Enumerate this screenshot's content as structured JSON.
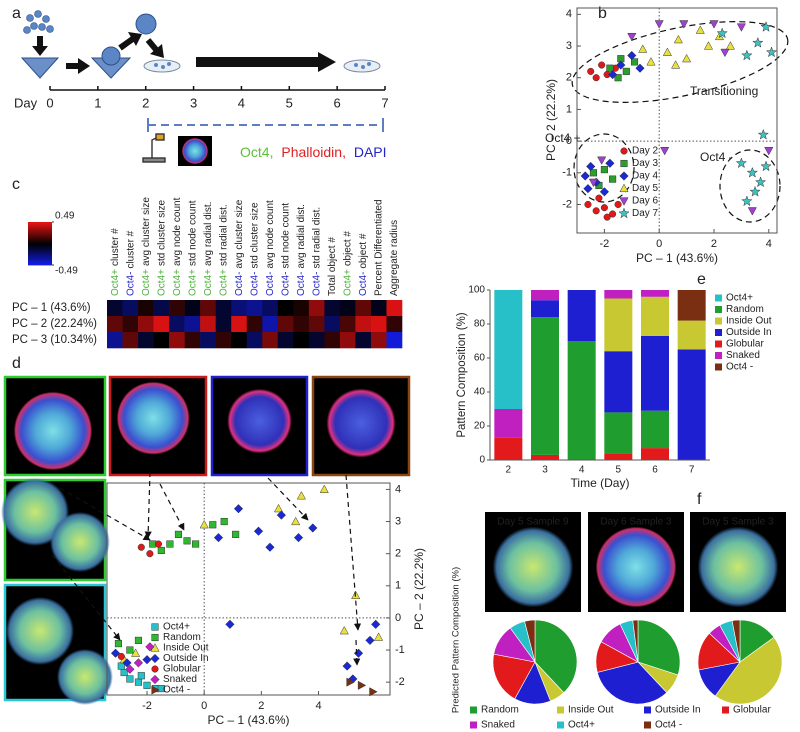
{
  "panel_labels": [
    "a",
    "b",
    "c",
    "d",
    "e",
    "f"
  ],
  "timeline": {
    "axis_label": "Day",
    "ticks": [
      0,
      1,
      2,
      3,
      4,
      5,
      6,
      7
    ],
    "xlim": [
      0,
      7
    ],
    "stain": [
      {
        "text": "Oct4,",
        "color": "#5cbf3a"
      },
      {
        "text": "Phalloidin,",
        "color": "#e02020"
      },
      {
        "text": "DAPI",
        "color": "#2424c8"
      }
    ]
  },
  "chart_data": [
    {
      "type": "scatter",
      "xlabel": "PC – 1 (43.6%)",
      "ylabel": "PC – 2 (22.2%)",
      "xlim": [
        -3,
        4.3
      ],
      "ylim": [
        -2.9,
        4.2
      ],
      "xticks": [
        -2,
        0,
        2,
        4
      ],
      "yticks": [
        -2,
        -1,
        0,
        1,
        2,
        3,
        4
      ],
      "zero_lines": true,
      "annotations": [
        "Transitioning",
        "Oct4 +",
        "Oct4 -"
      ],
      "series": [
        {
          "name": "Day 2",
          "color": "#e01818",
          "marker": "circle",
          "x": [
            -2.5,
            -2.3,
            -2.1,
            -1.9,
            -1.6,
            -2.6,
            -2.3,
            -2.0,
            -1.7,
            -1.5,
            -2.2,
            -1.9
          ],
          "y": [
            2.2,
            2.0,
            2.4,
            2.1,
            2.3,
            -2.0,
            -2.2,
            -2.1,
            -2.3,
            -2.0,
            -1.8,
            -2.4
          ]
        },
        {
          "name": "Day 3",
          "color": "#2aa02a",
          "marker": "square",
          "x": [
            -2.4,
            -2.0,
            -1.7,
            -2.2,
            -1.8,
            -1.5,
            -1.2,
            -0.9,
            -1.4
          ],
          "y": [
            -1.0,
            -0.9,
            -1.2,
            -1.4,
            2.3,
            2.0,
            2.2,
            2.5,
            2.6
          ]
        },
        {
          "name": "Day 4",
          "color": "#1a2ad0",
          "marker": "diamond",
          "x": [
            -2.7,
            -2.5,
            -2.3,
            -2.0,
            -1.8,
            -2.6,
            -1.4,
            -1.0,
            -0.7,
            -1.7
          ],
          "y": [
            -1.1,
            -0.8,
            -1.3,
            -1.6,
            -0.7,
            -1.5,
            2.4,
            2.7,
            2.3,
            2.1
          ]
        },
        {
          "name": "Day 5",
          "color": "#e8e040",
          "marker": "triangle",
          "x": [
            -0.3,
            0.3,
            0.7,
            1.0,
            1.5,
            1.8,
            2.2,
            2.6,
            0.6,
            -0.6
          ],
          "y": [
            2.5,
            2.8,
            3.2,
            2.6,
            3.5,
            3.0,
            3.3,
            3.0,
            2.4,
            2.9
          ]
        },
        {
          "name": "Day 6",
          "color": "#a040d0",
          "marker": "triangle-down",
          "x": [
            -1.0,
            0.0,
            0.9,
            2.0,
            3.0,
            2.4,
            -2.4,
            -2.1,
            0.2,
            4.0,
            3.4
          ],
          "y": [
            3.3,
            3.7,
            3.7,
            3.7,
            3.6,
            2.8,
            -1.3,
            -0.6,
            -0.3,
            -0.3,
            -2.2
          ]
        },
        {
          "name": "Day 7",
          "color": "#40c0c0",
          "marker": "star",
          "x": [
            2.3,
            3.2,
            3.6,
            3.9,
            4.1,
            3.0,
            3.4,
            3.7,
            3.9,
            3.5,
            3.8,
            3.2
          ],
          "y": [
            3.4,
            2.7,
            3.1,
            3.6,
            2.8,
            -0.7,
            -1.0,
            -1.3,
            -0.8,
            -1.6,
            0.2,
            -1.9
          ]
        }
      ]
    },
    {
      "type": "heatmap",
      "columns": [
        {
          "prefix": "Oct4+",
          "prefix_color": "#4caf3a",
          "text": "cluster #"
        },
        {
          "prefix": "Oct4-",
          "prefix_color": "#2424c8",
          "text": "cluster #"
        },
        {
          "prefix": "Oct4+",
          "prefix_color": "#4caf3a",
          "text": "avg cluster size"
        },
        {
          "prefix": "Oct4+",
          "prefix_color": "#4caf3a",
          "text": "std cluster size"
        },
        {
          "prefix": "Oct4+",
          "prefix_color": "#4caf3a",
          "text": "avg node count"
        },
        {
          "prefix": "Oct4+",
          "prefix_color": "#4caf3a",
          "text": "std node count"
        },
        {
          "prefix": "Oct4+",
          "prefix_color": "#4caf3a",
          "text": "avg radial dist."
        },
        {
          "prefix": "Oct4+",
          "prefix_color": "#4caf3a",
          "text": "std radial dist."
        },
        {
          "prefix": "Oct4-",
          "prefix_color": "#2424c8",
          "text": "avg cluster size"
        },
        {
          "prefix": "Oct4-",
          "prefix_color": "#2424c8",
          "text": "std cluster size"
        },
        {
          "prefix": "Oct4-",
          "prefix_color": "#2424c8",
          "text": "avg node count"
        },
        {
          "prefix": "Oct4-",
          "prefix_color": "#2424c8",
          "text": "std node count"
        },
        {
          "prefix": "Oct4-",
          "prefix_color": "#2424c8",
          "text": "avg radial dist."
        },
        {
          "prefix": "Oct4-",
          "prefix_color": "#2424c8",
          "text": "std radial dist."
        },
        {
          "text": "Total object #"
        },
        {
          "prefix": "Oct4+",
          "prefix_color": "#4caf3a",
          "text": "object #"
        },
        {
          "prefix": "Oct4-",
          "prefix_color": "#2424c8",
          "text": "object #"
        },
        {
          "text": "Percent Differentiated"
        },
        {
          "text": "Aggregate radius"
        }
      ],
      "rows": [
        "PC – 1 (43.6%)",
        "PC – 2 (22.24%)",
        "PC – 3 (10.34%)"
      ],
      "values": [
        [
          -0.1,
          -0.2,
          0.05,
          -0.15,
          0.1,
          -0.05,
          0.2,
          -0.1,
          -0.25,
          -0.3,
          -0.2,
          0.0,
          0.05,
          0.3,
          -0.1,
          -0.05,
          0.2,
          -0.05,
          0.45
        ],
        [
          0.2,
          0.1,
          0.3,
          0.45,
          -0.2,
          -0.3,
          0.4,
          -0.1,
          0.45,
          0.1,
          -0.35,
          0.2,
          0.1,
          0.2,
          -0.2,
          0.15,
          0.4,
          0.45,
          0.1
        ],
        [
          -0.3,
          0.2,
          -0.1,
          0.0,
          0.3,
          0.1,
          -0.2,
          0.1,
          0.0,
          -0.2,
          0.25,
          -0.1,
          0.0,
          -0.1,
          0.1,
          0.3,
          -0.1,
          0.3,
          -0.45
        ]
      ],
      "clim": [
        -0.49,
        0.49
      ],
      "cticks": [
        0.49,
        -0.49
      ]
    },
    {
      "type": "scatter",
      "xlabel": "PC – 1 (43.6%)",
      "ylabel": "PC – 2 (22.2%)",
      "xlim": [
        -3.4,
        6.5
      ],
      "ylim": [
        -2.4,
        4.2
      ],
      "xticks": [
        -2,
        0,
        2,
        4
      ],
      "yticks": [
        -2,
        -1,
        0,
        1,
        2,
        3,
        4
      ],
      "y_axis_side": "right",
      "zero_lines": true,
      "series": [
        {
          "name": "Oct4+",
          "color": "#28c0c8",
          "marker": "square",
          "x": [
            -2.6,
            -2.3,
            -2.0,
            -1.7,
            -2.8,
            -2.2,
            -1.5,
            -2.9
          ],
          "y": [
            -1.9,
            -2.0,
            -2.1,
            -2.2,
            -1.7,
            -1.8,
            -2.2,
            -1.5
          ]
        },
        {
          "name": "Random",
          "color": "#2db82d",
          "marker": "square",
          "x": [
            -3.0,
            -2.6,
            -2.3,
            -1.8,
            -1.5,
            -1.2,
            -0.9,
            -0.6,
            -0.3,
            0.3,
            0.7,
            1.1
          ],
          "y": [
            -0.8,
            -1.0,
            -0.7,
            2.3,
            2.1,
            2.3,
            2.6,
            2.4,
            2.3,
            2.9,
            3.0,
            2.6
          ]
        },
        {
          "name": "Inside Out",
          "color": "#e8e040",
          "marker": "triangle",
          "x": [
            -2.8,
            -2.4,
            2.6,
            3.4,
            4.2,
            3.2,
            4.9,
            5.3,
            6.1,
            0.0
          ],
          "y": [
            -1.3,
            -1.1,
            3.4,
            3.8,
            4.0,
            3.0,
            -0.4,
            0.7,
            -0.6,
            2.9
          ]
        },
        {
          "name": "Outside In",
          "color": "#1a2ad0",
          "marker": "diamond",
          "x": [
            -3.1,
            -2.7,
            -2.0,
            0.5,
            1.2,
            1.9,
            2.3,
            2.7,
            3.3,
            3.8,
            5.0,
            5.4,
            5.8,
            6.0,
            5.2,
            0.9
          ],
          "y": [
            -1.1,
            -1.4,
            -1.3,
            2.5,
            3.4,
            2.7,
            2.2,
            3.2,
            2.5,
            2.8,
            -1.5,
            -1.1,
            -0.7,
            -0.2,
            -1.9,
            -0.2
          ]
        },
        {
          "name": "Globular",
          "color": "#e01818",
          "marker": "circle",
          "x": [
            -2.2,
            -1.9,
            -1.6,
            -2.9
          ],
          "y": [
            2.2,
            2.0,
            2.3,
            -1.2
          ]
        },
        {
          "name": "Snaked",
          "color": "#c020c0",
          "marker": "diamond",
          "x": [
            -2.6,
            -2.3,
            -1.9
          ],
          "y": [
            -1.6,
            -1.4,
            -0.9
          ]
        },
        {
          "name": "Oct4 -",
          "color": "#7a2e12",
          "marker": "triangle-right",
          "x": [
            5.1,
            5.5,
            5.9
          ],
          "y": [
            -2.0,
            -2.1,
            -2.3
          ]
        }
      ]
    },
    {
      "type": "bar",
      "stacked": true,
      "xlabel": "Time (Day)",
      "ylabel": "Pattern Composition (%)",
      "categories": [
        "2",
        "3",
        "4",
        "5",
        "6",
        "7"
      ],
      "ylim": [
        0,
        100
      ],
      "yticks": [
        0,
        20,
        40,
        60,
        80,
        100
      ],
      "stack_order": [
        4,
        1,
        3,
        2,
        5,
        0,
        6
      ],
      "series": [
        {
          "name": "Oct4+",
          "color": "#28c0c8",
          "values": [
            70,
            0,
            0,
            0,
            0,
            0
          ]
        },
        {
          "name": "Random",
          "color": "#1f9e2f",
          "values": [
            0,
            81,
            70,
            24,
            22,
            0
          ]
        },
        {
          "name": "Inside Out",
          "color": "#c8c832",
          "values": [
            0,
            0,
            0,
            31,
            23,
            17
          ]
        },
        {
          "name": "Outside In",
          "color": "#1f1fd2",
          "values": [
            0,
            10,
            30,
            36,
            44,
            65
          ]
        },
        {
          "name": "Globular",
          "color": "#e31a1c",
          "values": [
            13,
            3,
            0,
            4,
            7,
            0
          ]
        },
        {
          "name": "Snaked",
          "color": "#c020c0",
          "values": [
            17,
            6,
            0,
            5,
            4,
            0
          ]
        },
        {
          "name": "Oct4 -",
          "color": "#7a2e12",
          "values": [
            0,
            0,
            0,
            0,
            0,
            18
          ]
        }
      ]
    },
    {
      "type": "pie",
      "ylabel": "Predicted Pattern Composition (%)",
      "categories": [
        "Random",
        "Inside Out",
        "Outside In",
        "Globular",
        "Snaked",
        "Oct4+",
        "Oct4 -"
      ],
      "colors": [
        "#1f9e2f",
        "#c8c832",
        "#1f1fd2",
        "#e31a1c",
        "#c020c0",
        "#28c0c8",
        "#7a2e12"
      ],
      "samples": [
        {
          "title": "Day 5 Sample 9",
          "values": [
            38,
            6,
            14,
            20,
            12,
            6,
            4
          ]
        },
        {
          "title": "Day 6 Sample 3",
          "values": [
            30,
            8,
            33,
            12,
            10,
            5,
            2
          ]
        },
        {
          "title": "Day 5 Sample 3",
          "values": [
            15,
            45,
            12,
            15,
            5,
            5,
            3
          ]
        }
      ]
    }
  ]
}
